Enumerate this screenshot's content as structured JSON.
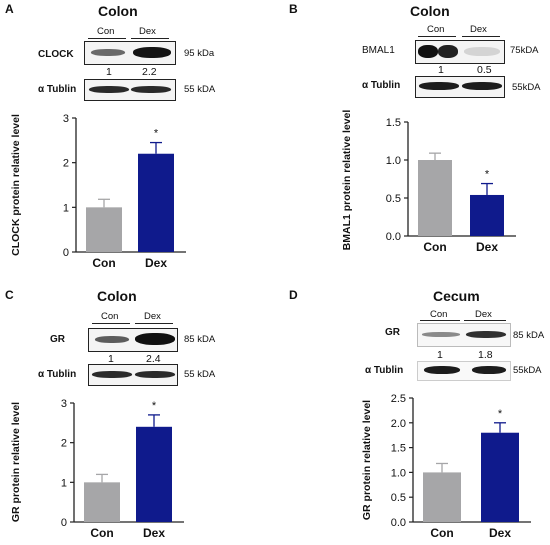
{
  "colors": {
    "con": "#a6a6a8",
    "dex": "#0f1a8c",
    "axis": "#222222"
  },
  "panels": [
    {
      "letter": "A",
      "tissue": "Colon",
      "blot_labels": [
        "CLOCK",
        "α Tublin"
      ],
      "kda": [
        "95 kDa",
        "55 kDA"
      ],
      "ratios": [
        "1",
        "2.2"
      ],
      "lanes": [
        "Con",
        "Dex"
      ]
    },
    {
      "letter": "B",
      "tissue": "Colon",
      "blot_labels": [
        "BMAL1",
        "α Tublin"
      ],
      "kda": [
        "75kDA",
        "55kDA"
      ],
      "ratios": [
        "1",
        "0.5"
      ],
      "lanes": [
        "Con",
        "Dex"
      ]
    },
    {
      "letter": "C",
      "tissue": "Colon",
      "blot_labels": [
        "GR",
        "α Tublin"
      ],
      "kda": [
        "85 kDA",
        "55 kDA"
      ],
      "ratios": [
        "1",
        "2.4"
      ],
      "lanes": [
        "Con",
        "Dex"
      ]
    },
    {
      "letter": "D",
      "tissue": "Cecum",
      "blot_labels": [
        "GR",
        "α Tublin"
      ],
      "kda": [
        "85 kDA",
        "55kDA"
      ],
      "ratios": [
        "1",
        "1.8"
      ],
      "lanes": [
        "Con",
        "Dex"
      ]
    }
  ],
  "chart_data": [
    {
      "type": "bar",
      "categories": [
        "Con",
        "Dex"
      ],
      "values": [
        1.0,
        2.2
      ],
      "errors": [
        0.18,
        0.25
      ],
      "significance": [
        "",
        "*"
      ],
      "ylabel": "CLOCK protein relative level",
      "ylim": [
        0,
        3
      ],
      "yticks": [
        "0",
        "1",
        "2",
        "3"
      ],
      "grid": false
    },
    {
      "type": "bar",
      "categories": [
        "Con",
        "Dex"
      ],
      "values": [
        1.0,
        0.54
      ],
      "errors": [
        0.09,
        0.15
      ],
      "significance": [
        "",
        "*"
      ],
      "ylabel": "BMAL1 protein relative level",
      "ylim": [
        0,
        1.5
      ],
      "yticks": [
        "0.0",
        "0.5",
        "1.0",
        "1.5"
      ],
      "grid": false
    },
    {
      "type": "bar",
      "categories": [
        "Con",
        "Dex"
      ],
      "values": [
        1.0,
        2.4
      ],
      "errors": [
        0.2,
        0.3
      ],
      "significance": [
        "",
        "*"
      ],
      "ylabel": "GR protein  relative level",
      "ylim": [
        0,
        3
      ],
      "yticks": [
        "0",
        "1",
        "2",
        "3"
      ],
      "grid": false
    },
    {
      "type": "bar",
      "categories": [
        "Con",
        "Dex"
      ],
      "values": [
        1.0,
        1.8
      ],
      "errors": [
        0.18,
        0.2
      ],
      "significance": [
        "",
        "*"
      ],
      "ylabel": "GR protein  relative level",
      "ylim": [
        0,
        2.5
      ],
      "yticks": [
        "0.0",
        "0.5",
        "1.0",
        "1.5",
        "2.0",
        "2.5"
      ],
      "grid": false
    }
  ]
}
